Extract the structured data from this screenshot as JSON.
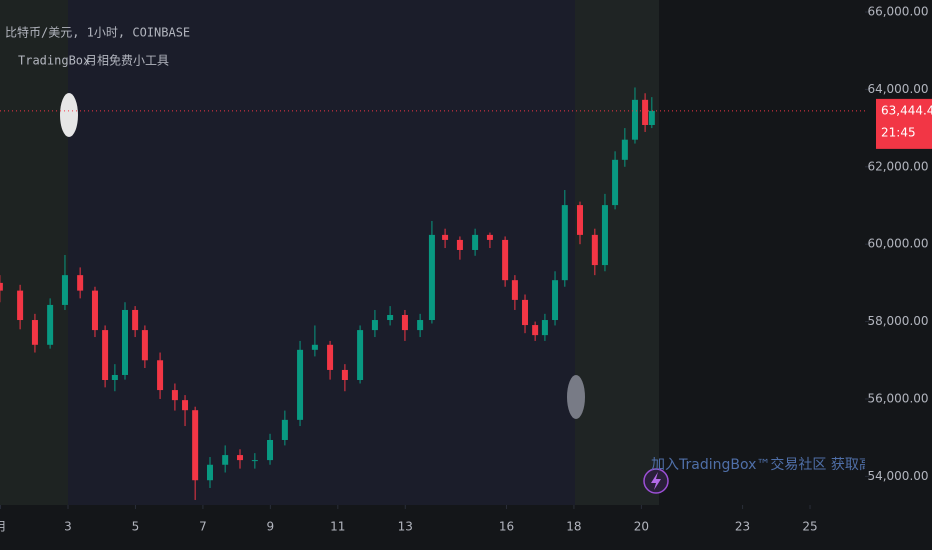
{
  "chart_data": {
    "type": "candlestick",
    "title": "比特币/美元, 1小时, COINBASE",
    "indicators": [
      "TradingBox",
      "月相免费小工具"
    ],
    "watermark": "加入TradingBox™交易社区 获取高级AI信号系统",
    "up_color": "#089981",
    "down_color": "#f23645",
    "x": [
      0.98,
      1.58,
      2.02,
      2.47,
      2.91,
      3.36,
      3.8,
      4.1,
      4.39,
      4.69,
      4.99,
      5.28,
      5.73,
      6.17,
      6.47,
      6.77,
      7.21,
      7.66,
      8.1,
      8.54,
      8.99,
      9.43,
      9.88,
      10.32,
      10.77,
      11.21,
      11.66,
      12.1,
      12.55,
      12.99,
      13.44,
      13.79,
      14.18,
      14.62,
      15.07,
      15.51,
      15.96,
      16.25,
      16.55,
      16.85,
      17.14,
      17.44,
      17.73,
      18.18,
      18.62,
      18.92,
      19.22,
      19.51,
      19.81,
      20.11,
      20.31
    ],
    "open": [
      59000,
      58800,
      58040,
      57400,
      58430,
      59200,
      58800,
      57780,
      56490,
      56620,
      58300,
      57780,
      57000,
      56230,
      55970,
      55710,
      53900,
      54300,
      54550,
      54420,
      54420,
      54940,
      55460,
      57270,
      57400,
      56750,
      56490,
      57780,
      58040,
      58170,
      57780,
      58040,
      60240,
      60110,
      59850,
      60240,
      60110,
      59070,
      58560,
      57910,
      57650,
      58040,
      59070,
      61010,
      60240,
      59460,
      61010,
      62180,
      62700,
      63730,
      63080
    ],
    "high": [
      59200,
      58950,
      58200,
      58600,
      59720,
      59400,
      58900,
      57900,
      56900,
      58500,
      58400,
      57900,
      57200,
      56400,
      56100,
      55800,
      54500,
      54800,
      54700,
      54600,
      55100,
      55700,
      57500,
      57900,
      57500,
      56900,
      57900,
      58300,
      58400,
      58300,
      58200,
      60600,
      60400,
      60200,
      60400,
      60300,
      60200,
      59200,
      58700,
      58000,
      58200,
      59300,
      61400,
      61100,
      60400,
      61300,
      62400,
      63000,
      64050,
      63900,
      63800
    ],
    "low": [
      58500,
      57800,
      57200,
      57300,
      58300,
      58600,
      57600,
      56300,
      56200,
      56500,
      57600,
      56800,
      56000,
      55700,
      55300,
      53390,
      53700,
      54100,
      54200,
      54200,
      54300,
      54800,
      55300,
      57100,
      56500,
      56200,
      56400,
      57600,
      57900,
      57500,
      57600,
      57950,
      59900,
      59600,
      59700,
      59900,
      58900,
      58300,
      57700,
      57500,
      57500,
      57900,
      58900,
      60000,
      59200,
      59300,
      60900,
      62000,
      62600,
      62900,
      63000
    ],
    "close": [
      58800,
      58040,
      57400,
      58430,
      59200,
      58800,
      57780,
      56490,
      56620,
      58300,
      57780,
      57000,
      56230,
      55970,
      55710,
      53900,
      54300,
      54550,
      54420,
      54420,
      54940,
      55460,
      57270,
      57400,
      56750,
      56490,
      57780,
      58040,
      58170,
      57780,
      58040,
      60240,
      60110,
      59850,
      60240,
      60110,
      59070,
      58560,
      57910,
      57650,
      58040,
      59070,
      61010,
      60240,
      59460,
      61010,
      62180,
      62700,
      63730,
      63080,
      63444.47
    ],
    "xlim": [
      0.984,
      26.63
    ],
    "xticks": [
      {
        "value": 1,
        "label": "月"
      },
      3,
      5,
      7,
      9,
      11,
      13,
      16,
      18,
      20,
      23,
      25
    ],
    "ylim": [
      53260,
      66310
    ],
    "yticks": [
      {
        "value": 54000,
        "label": "54,000.00"
      },
      {
        "value": 56000,
        "label": "56,000.00"
      },
      {
        "value": 58000,
        "label": "58,000.00"
      },
      {
        "value": 60000,
        "label": "60,000.00"
      },
      {
        "value": 62000,
        "label": "62,000.00"
      },
      {
        "value": 64000,
        "label": "64,000.00"
      },
      {
        "value": 66000,
        "label": "66,000.00"
      }
    ],
    "price_label": {
      "value": 63444.47,
      "label": "63,444.47"
    },
    "countdown": "21:45"
  }
}
